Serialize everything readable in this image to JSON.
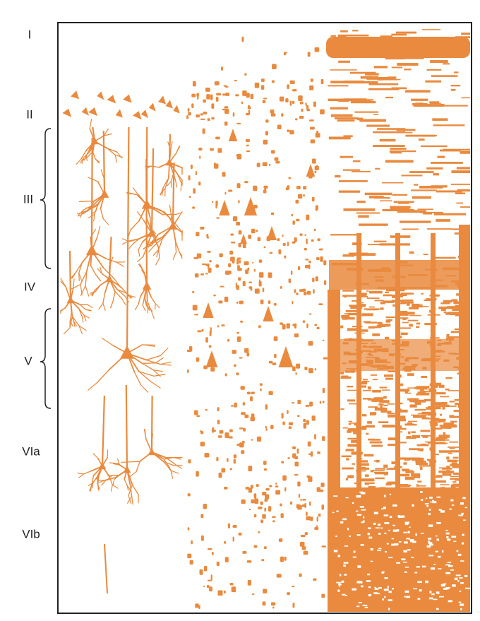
{
  "layers": [
    "I",
    "II",
    "III",
    "IV",
    "V",
    "VIa",
    "VIb"
  ]
}
